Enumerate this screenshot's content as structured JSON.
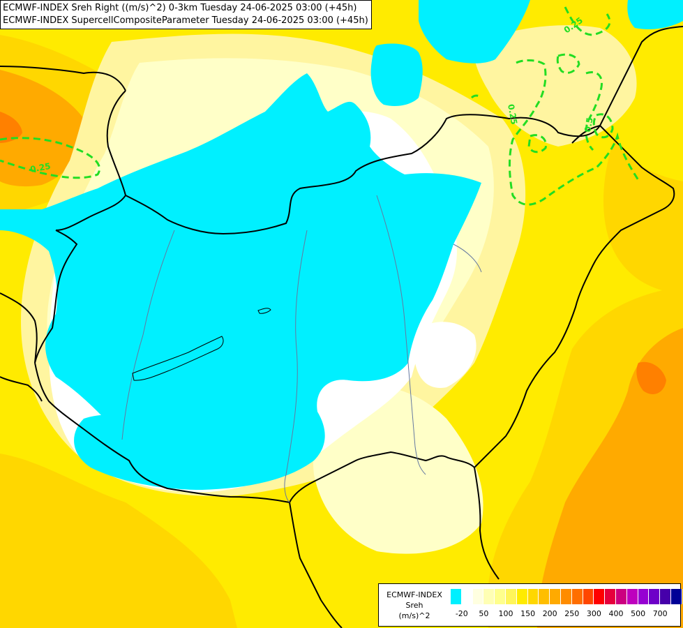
{
  "title": {
    "line1": "ECMWF-INDEX Sreh Right ((m/s)^2) 0-3km Tuesday 24-06-2025 03:00 (+45h)",
    "line2": "ECMWF-INDEX SupercellCompositeParameter Tuesday 24-06-2025 03:00 (+45h)"
  },
  "map": {
    "fill_colors": {
      "cyan": "#00F0FF",
      "white": "#FFFFFF",
      "pale_yellow": "#FFFFC8",
      "light_yellow": "#FFF5A0",
      "yellow": "#FFEB00",
      "gold": "#FFD700",
      "orange": "#FFAA00",
      "dark_orange": "#FF8000"
    },
    "contour_color": "#22DD22",
    "contour_labels": [
      "0.25",
      "0.25",
      "0.25",
      "0.5"
    ]
  },
  "legend": {
    "product": "ECMWF-INDEX",
    "param": "Sreh",
    "unit": "(m/s)^2",
    "colors": [
      "#00F0FF",
      "#FFFFFF",
      "#FFFFE0",
      "#FFFFB4",
      "#FFFF8C",
      "#FFF55A",
      "#FFEB00",
      "#FFD700",
      "#FFBE00",
      "#FFAA00",
      "#FF8C00",
      "#FF6E00",
      "#FF4600",
      "#FF0000",
      "#E6003C",
      "#CC0080",
      "#BE00BE",
      "#9600D2",
      "#6E00C8",
      "#4600AA",
      "#000096"
    ],
    "tick_labels": [
      "-20",
      "50",
      "100",
      "150",
      "200",
      "250",
      "300",
      "400",
      "500",
      "700"
    ]
  }
}
